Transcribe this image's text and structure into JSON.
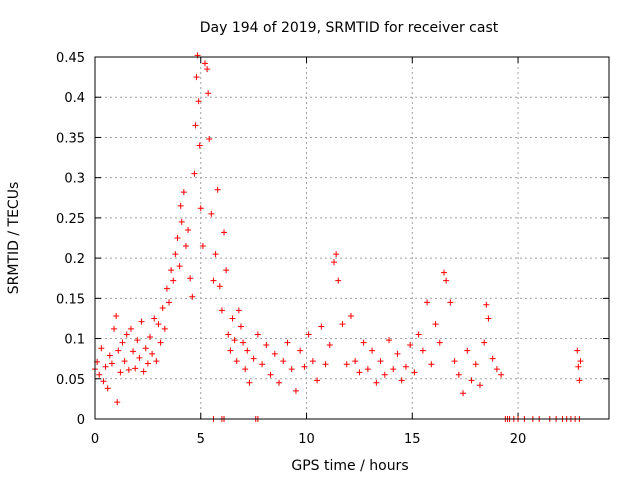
{
  "chart_data": {
    "type": "scatter",
    "title": "Day 194 of 2019, SRMTID for receiver cast",
    "xlabel": "GPS time / hours",
    "ylabel": "SRMTID / TECUs",
    "xlim": [
      0,
      24.3
    ],
    "ylim": [
      0,
      0.45
    ],
    "xticks": [
      0,
      5,
      10,
      15,
      20
    ],
    "xtick_labels": [
      "0",
      "5",
      "10",
      "15",
      "20"
    ],
    "yticks": [
      0,
      0.05,
      0.1,
      0.15,
      0.2,
      0.25,
      0.3,
      0.35,
      0.4,
      0.45
    ],
    "ytick_labels": [
      "0",
      "0.05",
      "0.1",
      "0.15",
      "0.2",
      "0.25",
      "0.3",
      "0.35",
      "0.4",
      "0.45"
    ],
    "grid": true,
    "marker": "+",
    "color": "#ff0000",
    "series": [
      {
        "name": "SRMTID",
        "points": [
          [
            0.0,
            0.062
          ],
          [
            0.1,
            0.071
          ],
          [
            0.2,
            0.055
          ],
          [
            0.3,
            0.088
          ],
          [
            0.4,
            0.047
          ],
          [
            0.5,
            0.065
          ],
          [
            0.6,
            0.038
          ],
          [
            0.7,
            0.079
          ],
          [
            0.8,
            0.069
          ],
          [
            0.9,
            0.112
          ],
          [
            1.0,
            0.128
          ],
          [
            1.05,
            0.021
          ],
          [
            1.1,
            0.085
          ],
          [
            1.2,
            0.058
          ],
          [
            1.3,
            0.095
          ],
          [
            1.4,
            0.072
          ],
          [
            1.5,
            0.105
          ],
          [
            1.6,
            0.061
          ],
          [
            1.7,
            0.112
          ],
          [
            1.8,
            0.084
          ],
          [
            1.9,
            0.063
          ],
          [
            2.0,
            0.098
          ],
          [
            2.1,
            0.076
          ],
          [
            2.2,
            0.121
          ],
          [
            2.3,
            0.059
          ],
          [
            2.4,
            0.088
          ],
          [
            2.5,
            0.069
          ],
          [
            2.6,
            0.102
          ],
          [
            2.7,
            0.081
          ],
          [
            2.8,
            0.125
          ],
          [
            2.9,
            0.072
          ],
          [
            3.0,
            0.118
          ],
          [
            3.1,
            0.095
          ],
          [
            3.2,
            0.138
          ],
          [
            3.3,
            0.112
          ],
          [
            3.4,
            0.162
          ],
          [
            3.5,
            0.145
          ],
          [
            3.6,
            0.185
          ],
          [
            3.7,
            0.172
          ],
          [
            3.8,
            0.205
          ],
          [
            3.9,
            0.225
          ],
          [
            4.0,
            0.19
          ],
          [
            4.05,
            0.265
          ],
          [
            4.1,
            0.245
          ],
          [
            4.2,
            0.282
          ],
          [
            4.3,
            0.215
          ],
          [
            4.4,
            0.235
          ],
          [
            4.5,
            0.175
          ],
          [
            4.6,
            0.152
          ],
          [
            4.7,
            0.305
          ],
          [
            4.75,
            0.365
          ],
          [
            4.8,
            0.425
          ],
          [
            4.85,
            0.452
          ],
          [
            4.9,
            0.395
          ],
          [
            4.95,
            0.34
          ],
          [
            5.0,
            0.262
          ],
          [
            5.1,
            0.215
          ],
          [
            5.2,
            0.442
          ],
          [
            5.3,
            0.435
          ],
          [
            5.35,
            0.405
          ],
          [
            5.4,
            0.348
          ],
          [
            5.5,
            0.255
          ],
          [
            5.6,
            0.172
          ],
          [
            5.7,
            0.205
          ],
          [
            5.8,
            0.285
          ],
          [
            5.9,
            0.165
          ],
          [
            6.0,
            0.135
          ],
          [
            6.1,
            0.232
          ],
          [
            6.2,
            0.185
          ],
          [
            6.3,
            0.105
          ],
          [
            6.4,
            0.085
          ],
          [
            6.5,
            0.125
          ],
          [
            6.6,
            0.098
          ],
          [
            6.7,
            0.072
          ],
          [
            6.8,
            0.135
          ],
          [
            6.9,
            0.115
          ],
          [
            7.0,
            0.095
          ],
          [
            7.1,
            0.062
          ],
          [
            7.2,
            0.085
          ],
          [
            7.3,
            0.045
          ],
          [
            7.5,
            0.075
          ],
          [
            7.7,
            0.105
          ],
          [
            7.9,
            0.068
          ],
          [
            8.1,
            0.092
          ],
          [
            8.3,
            0.055
          ],
          [
            8.5,
            0.081
          ],
          [
            8.7,
            0.045
          ],
          [
            8.9,
            0.072
          ],
          [
            9.1,
            0.095
          ],
          [
            9.3,
            0.062
          ],
          [
            9.5,
            0.035
          ],
          [
            9.7,
            0.085
          ],
          [
            9.9,
            0.065
          ],
          [
            10.1,
            0.105
          ],
          [
            10.3,
            0.072
          ],
          [
            10.5,
            0.048
          ],
          [
            10.7,
            0.115
          ],
          [
            10.9,
            0.068
          ],
          [
            11.1,
            0.092
          ],
          [
            11.3,
            0.195
          ],
          [
            11.4,
            0.205
          ],
          [
            11.5,
            0.172
          ],
          [
            11.7,
            0.118
          ],
          [
            11.9,
            0.068
          ],
          [
            12.1,
            0.128
          ],
          [
            12.3,
            0.072
          ],
          [
            12.5,
            0.058
          ],
          [
            12.7,
            0.095
          ],
          [
            12.9,
            0.062
          ],
          [
            13.1,
            0.085
          ],
          [
            13.3,
            0.045
          ],
          [
            13.5,
            0.072
          ],
          [
            13.7,
            0.055
          ],
          [
            13.9,
            0.098
          ],
          [
            14.1,
            0.062
          ],
          [
            14.3,
            0.081
          ],
          [
            14.5,
            0.048
          ],
          [
            14.7,
            0.065
          ],
          [
            14.9,
            0.092
          ],
          [
            15.1,
            0.058
          ],
          [
            15.3,
            0.105
          ],
          [
            15.5,
            0.085
          ],
          [
            15.7,
            0.145
          ],
          [
            15.9,
            0.068
          ],
          [
            16.1,
            0.118
          ],
          [
            16.3,
            0.095
          ],
          [
            16.5,
            0.182
          ],
          [
            16.6,
            0.172
          ],
          [
            16.8,
            0.145
          ],
          [
            17.0,
            0.072
          ],
          [
            17.2,
            0.055
          ],
          [
            17.4,
            0.032
          ],
          [
            17.6,
            0.085
          ],
          [
            17.8,
            0.048
          ],
          [
            18.0,
            0.068
          ],
          [
            18.2,
            0.042
          ],
          [
            18.4,
            0.095
          ],
          [
            18.5,
            0.142
          ],
          [
            18.6,
            0.125
          ],
          [
            18.8,
            0.075
          ],
          [
            19.0,
            0.062
          ],
          [
            19.2,
            0.055
          ],
          [
            22.8,
            0.085
          ],
          [
            22.85,
            0.065
          ],
          [
            22.9,
            0.048
          ],
          [
            22.95,
            0.072
          ]
        ]
      }
    ],
    "zero_markers_x": [
      5.6,
      6.0,
      6.1,
      7.6,
      7.7,
      19.4,
      19.5,
      19.6,
      19.8,
      20.0,
      20.3,
      20.7,
      21.0,
      21.5,
      21.8,
      22.1,
      22.3,
      22.5,
      22.7,
      22.9
    ]
  }
}
